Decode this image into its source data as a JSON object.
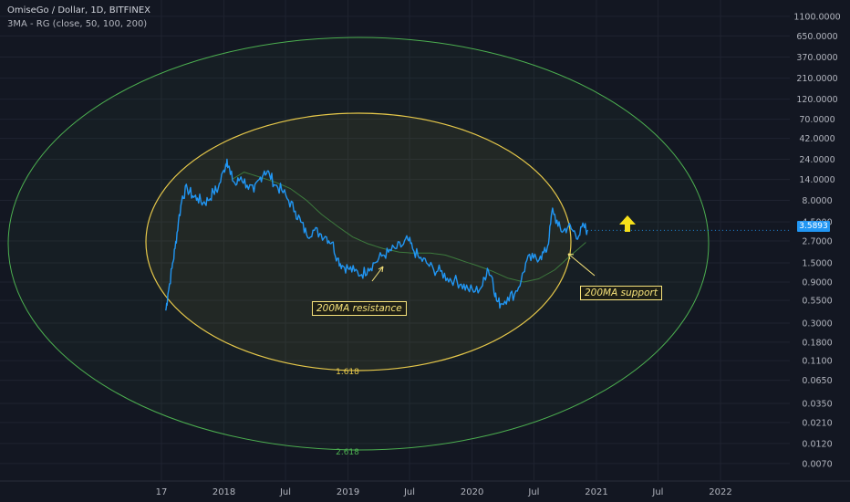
{
  "header": {
    "title": "OmiseGo / Dollar, 1D, BITFINEX",
    "indicator": "3MA - RG (close, 50, 100, 200)"
  },
  "colors": {
    "background": "#131722",
    "price_line": "#2196f3",
    "ma_line": "#3d7a3d",
    "inner_ellipse": "#e6c84a",
    "outer_ellipse": "#4caf50",
    "annotation": "#f6e27a",
    "arrow_up": "#f6e01a",
    "axis_text": "#b2b5be"
  },
  "annotations": {
    "resistance": "200MA resistance",
    "support": "200MA support",
    "inner_fib": "1.618",
    "outer_fib": "2.618"
  },
  "price_tag": "3.5893",
  "chart_data": {
    "type": "line",
    "title": "OmiseGo / Dollar, 1D, BITFINEX",
    "y_scale": "log",
    "ylim": [
      0.0045,
      1700
    ],
    "x_ticks": [
      "17",
      "2018",
      "Jul",
      "2019",
      "Jul",
      "2020",
      "Jul",
      "2021",
      "Jul",
      "2022"
    ],
    "x_tick_dates": [
      "2017-07-01",
      "2018-01-01",
      "2018-07-01",
      "2019-01-01",
      "2019-07-01",
      "2020-01-01",
      "2020-07-01",
      "2021-01-01",
      "2021-07-01",
      "2022-01-01"
    ],
    "y_ticks": [
      "1100.0000",
      "650.0000",
      "370.0000",
      "210.0000",
      "120.0000",
      "70.0000",
      "42.0000",
      "24.0000",
      "14.0000",
      "8.0000",
      "4.5000",
      "2.7000",
      "1.5000",
      "0.9000",
      "0.5500",
      "0.3000",
      "0.1800",
      "0.1100",
      "0.0650",
      "0.0350",
      "0.0210",
      "0.0120",
      "0.0070"
    ],
    "y_tick_values": [
      1100,
      650,
      370,
      210,
      120,
      70,
      42,
      24,
      14,
      8,
      4.5,
      2.7,
      1.5,
      0.9,
      0.55,
      0.3,
      0.18,
      0.11,
      0.065,
      0.035,
      0.021,
      0.012,
      0.007
    ],
    "grid": true,
    "series": [
      {
        "name": "OMG/USD",
        "x": [
          "2017-07-14",
          "2017-07-20",
          "2017-08-01",
          "2017-08-10",
          "2017-08-20",
          "2017-09-01",
          "2017-09-15",
          "2017-10-01",
          "2017-10-15",
          "2017-11-01",
          "2017-11-15",
          "2017-12-01",
          "2017-12-15",
          "2018-01-01",
          "2018-01-10",
          "2018-01-20",
          "2018-02-05",
          "2018-02-20",
          "2018-03-10",
          "2018-03-30",
          "2018-04-15",
          "2018-04-30",
          "2018-05-15",
          "2018-06-01",
          "2018-06-20",
          "2018-07-10",
          "2018-07-30",
          "2018-08-15",
          "2018-09-01",
          "2018-09-20",
          "2018-10-10",
          "2018-10-30",
          "2018-11-15",
          "2018-12-01",
          "2018-12-15",
          "2019-01-01",
          "2019-01-20",
          "2019-02-10",
          "2019-03-01",
          "2019-03-20",
          "2019-04-10",
          "2019-04-30",
          "2019-05-20",
          "2019-06-10",
          "2019-06-26",
          "2019-07-10",
          "2019-07-30",
          "2019-08-20",
          "2019-09-10",
          "2019-09-30",
          "2019-10-20",
          "2019-11-10",
          "2019-11-30",
          "2019-12-20",
          "2020-01-10",
          "2020-02-01",
          "2020-02-15",
          "2020-03-01",
          "2020-03-13",
          "2020-03-25",
          "2020-04-15",
          "2020-05-05",
          "2020-05-25",
          "2020-06-10",
          "2020-06-30",
          "2020-07-20",
          "2020-08-05",
          "2020-08-15",
          "2020-08-25",
          "2020-09-10",
          "2020-09-25",
          "2020-10-10",
          "2020-10-25",
          "2020-11-10",
          "2020-11-25",
          "2020-12-05"
        ],
        "y": [
          0.42,
          0.65,
          1.3,
          2.2,
          4.5,
          9.0,
          11.0,
          9.0,
          8.5,
          7.5,
          8.0,
          10.0,
          11.0,
          18.0,
          24.0,
          16.0,
          12.0,
          15.0,
          12.0,
          10.0,
          14.0,
          17.5,
          16.0,
          12.0,
          10.5,
          8.0,
          6.0,
          4.5,
          3.2,
          3.6,
          3.3,
          3.0,
          2.6,
          1.7,
          1.4,
          1.3,
          1.2,
          1.1,
          1.3,
          1.5,
          1.8,
          2.0,
          2.2,
          2.4,
          2.8,
          2.2,
          1.7,
          1.5,
          1.25,
          1.2,
          1.0,
          0.95,
          0.85,
          0.75,
          0.7,
          0.82,
          1.3,
          1.0,
          0.55,
          0.5,
          0.6,
          0.65,
          0.95,
          1.6,
          1.7,
          1.8,
          2.0,
          3.0,
          6.5,
          4.0,
          3.5,
          4.0,
          3.5,
          3.1,
          4.0,
          3.5893
        ]
      },
      {
        "name": "200MA",
        "x": [
          "2018-01-25",
          "2018-03-01",
          "2018-04-15",
          "2018-06-01",
          "2018-07-15",
          "2018-09-01",
          "2018-10-15",
          "2018-12-01",
          "2019-01-15",
          "2019-03-01",
          "2019-04-15",
          "2019-06-01",
          "2019-07-15",
          "2019-09-01",
          "2019-10-15",
          "2019-12-01",
          "2020-01-15",
          "2020-03-01",
          "2020-04-15",
          "2020-06-01",
          "2020-07-15",
          "2020-09-01",
          "2020-10-15",
          "2020-12-01"
        ],
        "y": [
          14.0,
          17.0,
          15.0,
          13.0,
          11.0,
          8.0,
          5.5,
          4.0,
          3.0,
          2.5,
          2.2,
          2.0,
          1.95,
          1.95,
          1.85,
          1.6,
          1.4,
          1.2,
          1.0,
          0.9,
          0.98,
          1.25,
          1.8,
          2.6
        ]
      }
    ]
  }
}
